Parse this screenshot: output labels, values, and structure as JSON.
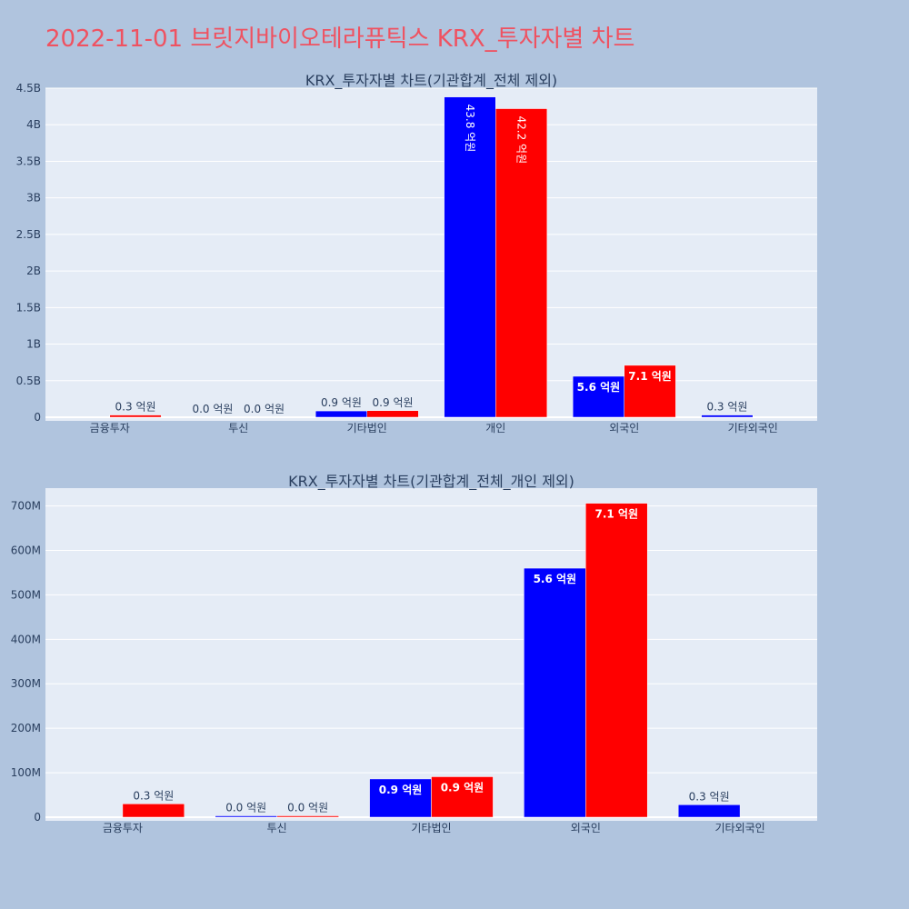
{
  "title": "2022-11-01 브릿지바이오테라퓨틱스 KRX_투자자별 차트",
  "colors": {
    "page_bg": "#b0c4de",
    "plot_bg": "#e5ecf6",
    "title": "#ef5261",
    "buy": "#0000ff",
    "sell": "#ff0000"
  },
  "chart_data": [
    {
      "type": "bar",
      "title": "KRX_투자자별 차트(기관합계_전체 제외)",
      "categories": [
        "금융투자",
        "투신",
        "기타법인",
        "개인",
        "외국인",
        "기타외국인"
      ],
      "series": [
        {
          "color": "#0000ff",
          "values": [
            0,
            0.0,
            86000000,
            4380000000,
            560000000,
            30000000
          ],
          "labels": [
            "",
            "0.0 억원",
            "0.9 억원",
            "43.8 억원",
            "5.6 억원",
            "0.3 억원"
          ]
        },
        {
          "color": "#ff0000",
          "values": [
            30000000,
            0.0,
            90000000,
            4220000000,
            710000000,
            0
          ],
          "labels": [
            "0.3 억원",
            "0.0 억원",
            "0.9 억원",
            "42.2 억원",
            "7.1 억원",
            ""
          ]
        }
      ],
      "ylim": [
        0,
        4500000000
      ],
      "yticks": [
        0,
        500000000,
        1000000000,
        1500000000,
        2000000000,
        2500000000,
        3000000000,
        3500000000,
        4000000000,
        4500000000
      ],
      "ytick_labels": [
        "0",
        "0.5B",
        "1B",
        "1.5B",
        "2B",
        "2.5B",
        "3B",
        "3.5B",
        "4B",
        "4.5B"
      ],
      "grid": true
    },
    {
      "type": "bar",
      "title": "KRX_투자자별 차트(기관합계_전체_개인 제외)",
      "categories": [
        "금융투자",
        "투신",
        "기타법인",
        "외국인",
        "기타외국인"
      ],
      "series": [
        {
          "color": "#0000ff",
          "values": [
            0,
            1000000,
            86000000,
            560000000,
            28000000
          ],
          "labels": [
            "",
            "0.0 억원",
            "0.9 억원",
            "5.6 억원",
            "0.3 억원"
          ]
        },
        {
          "color": "#ff0000",
          "values": [
            30000000,
            1000000,
            91000000,
            706000000,
            0
          ],
          "labels": [
            "0.3 억원",
            "0.0 억원",
            "0.9 억원",
            "7.1 억원",
            ""
          ]
        }
      ],
      "ylim": [
        0,
        740000000
      ],
      "yticks": [
        0,
        100000000,
        200000000,
        300000000,
        400000000,
        500000000,
        600000000,
        700000000
      ],
      "ytick_labels": [
        "0",
        "100M",
        "200M",
        "300M",
        "400M",
        "500M",
        "600M",
        "700M"
      ],
      "grid": true
    }
  ]
}
